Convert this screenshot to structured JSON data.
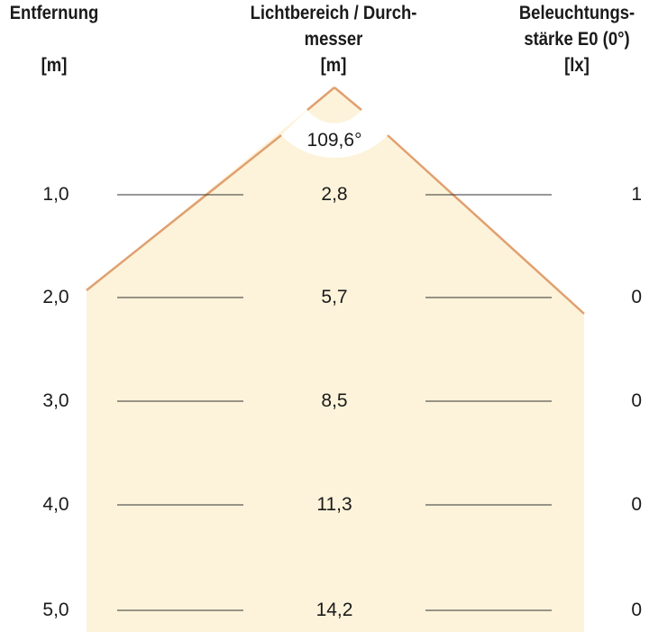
{
  "headers": {
    "distance": {
      "line1": "Entfernung",
      "unit": "[m]"
    },
    "diameter": {
      "line1": "Lichtbereich / Durch-",
      "line2": "messer",
      "unit": "[m]"
    },
    "illuminance": {
      "line1": "Beleuchtungs-",
      "line2": "stärke E0 (0°)",
      "unit": "[lx]"
    }
  },
  "beam_angle": "109,6°",
  "rows": [
    {
      "distance": "1,0",
      "diameter": "2,8",
      "illuminance": "1"
    },
    {
      "distance": "2,0",
      "diameter": "5,7",
      "illuminance": "0"
    },
    {
      "distance": "3,0",
      "diameter": "8,5",
      "illuminance": "0"
    },
    {
      "distance": "4,0",
      "diameter": "11,3",
      "illuminance": "0"
    },
    {
      "distance": "5,0",
      "diameter": "14,2",
      "illuminance": "0"
    }
  ],
  "colors": {
    "beam_fill": "#fdf3da",
    "beam_edge": "#e0a070",
    "rule": "#333333"
  }
}
